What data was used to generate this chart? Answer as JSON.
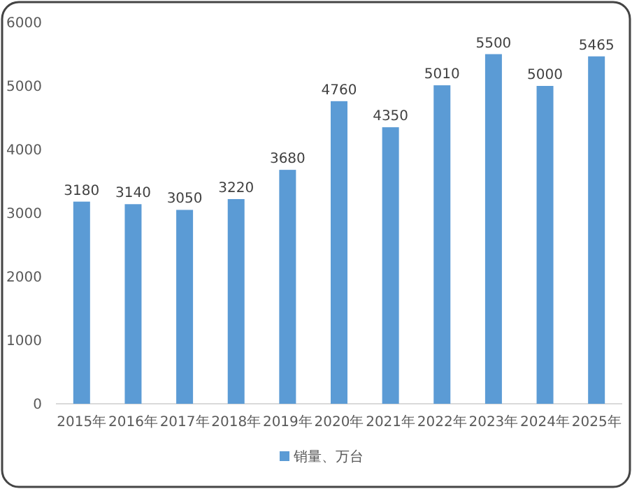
{
  "chart_data": {
    "type": "bar",
    "categories": [
      "2015年",
      "2016年",
      "2017年",
      "2018年",
      "2019年",
      "2020年",
      "2021年",
      "2022年",
      "2023年",
      "2024年",
      "2025年"
    ],
    "series": [
      {
        "name": "销量、万台",
        "color": "#5b9bd5",
        "values": [
          3180,
          3140,
          3050,
          3220,
          3680,
          4760,
          4350,
          5010,
          5500,
          5000,
          5465
        ]
      }
    ],
    "ylim": [
      0,
      6000
    ],
    "yticks": [
      0,
      1000,
      2000,
      3000,
      4000,
      5000,
      6000
    ],
    "data_labels": true,
    "legend": "bottom",
    "grid": false
  }
}
